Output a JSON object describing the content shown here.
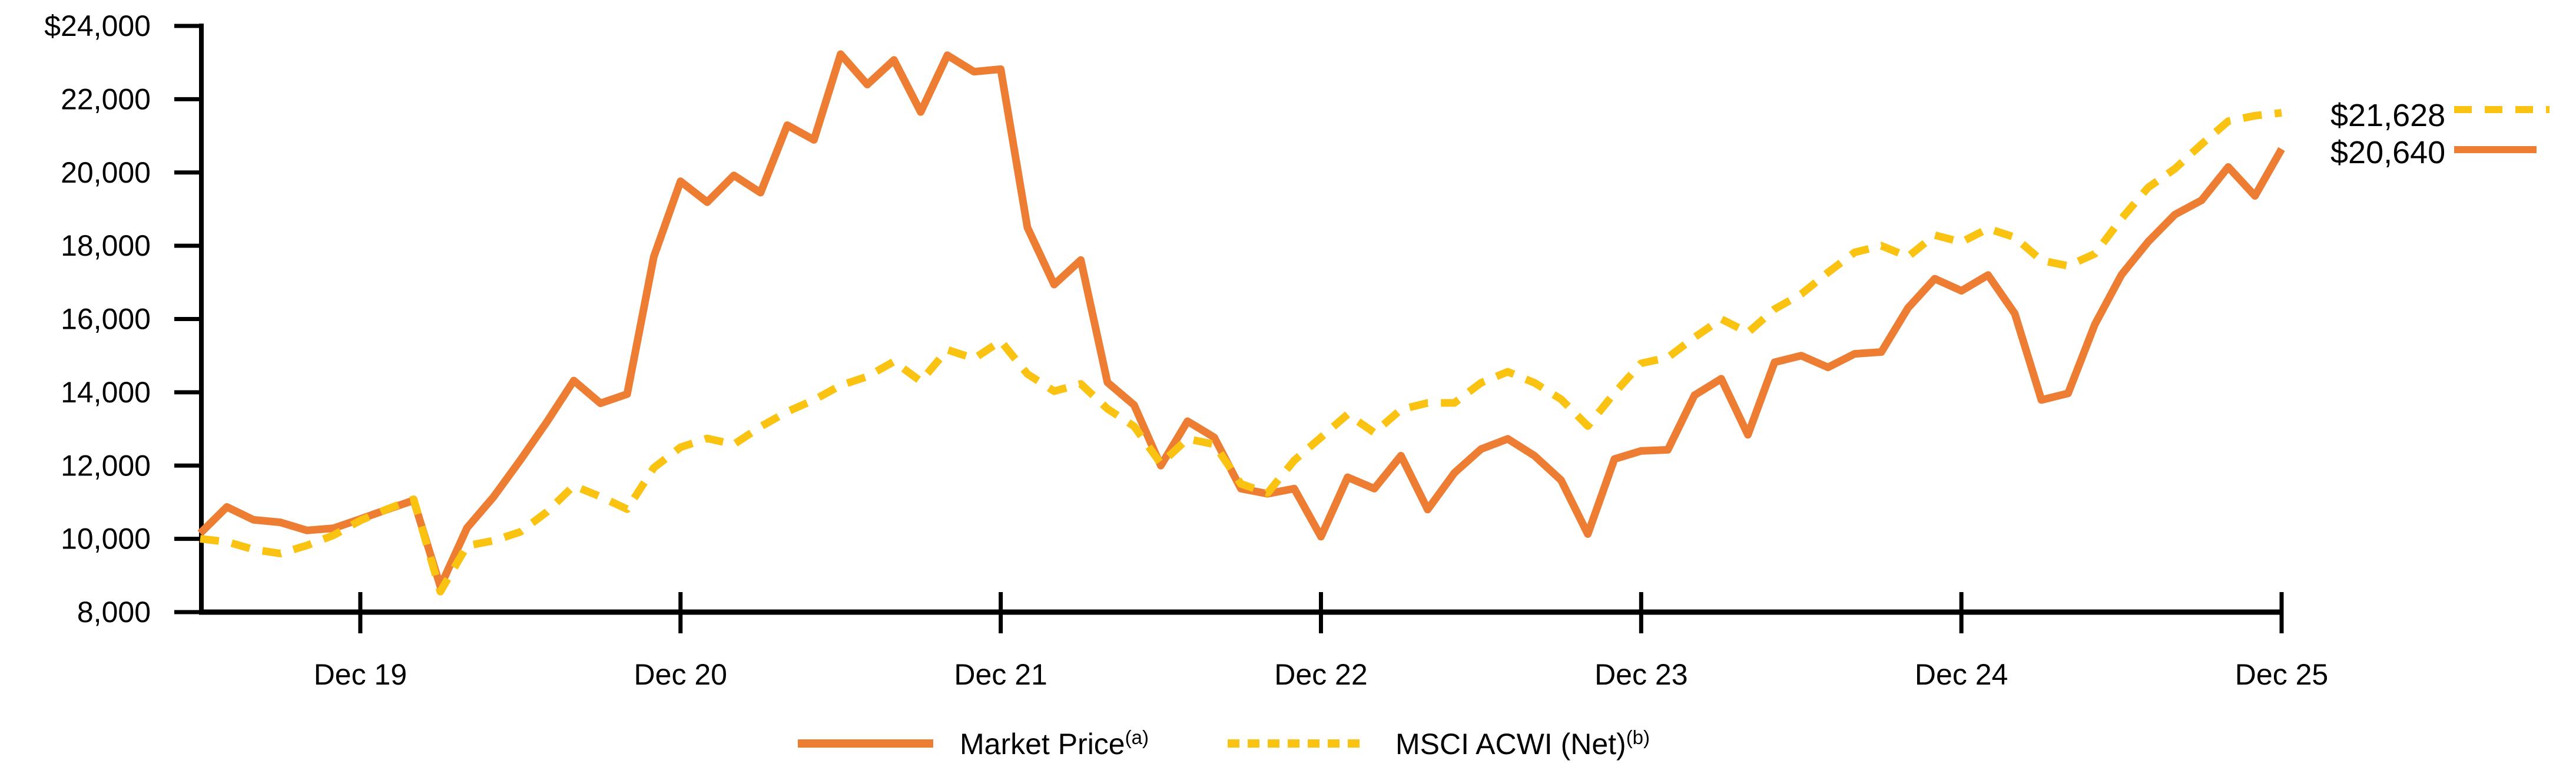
{
  "chart_data": {
    "type": "line",
    "title": "",
    "xlabel": "",
    "ylabel": "",
    "ylim": [
      8000,
      24000
    ],
    "grid": false,
    "legend_position": "bottom-center",
    "x_unit": "monthly",
    "x_first_point": "Jun 2019",
    "x_tick_labels": [
      "Dec 19",
      "Dec 20",
      "Dec 21",
      "Dec 22",
      "Dec 23",
      "Dec 24",
      "Dec 25"
    ],
    "x_tick_month_indices": [
      6,
      18,
      30,
      42,
      54,
      66,
      78
    ],
    "y_tick_values": [
      24000,
      22000,
      20000,
      18000,
      16000,
      14000,
      12000,
      10000,
      8000
    ],
    "y_tick_labels": [
      "$24,000",
      "22,000",
      "20,000",
      "18,000",
      "16,000",
      "14,000",
      "12,000",
      "10,000",
      "8,000"
    ],
    "series": [
      {
        "name": "Market Price",
        "superscript": "(a)",
        "style": "solid",
        "color": "#ED7D33",
        "end_label": "$20,640",
        "values": [
          10150,
          10870,
          10520,
          10450,
          10230,
          10290,
          10540,
          10800,
          11050,
          8700,
          10300,
          11150,
          12150,
          13200,
          14320,
          13700,
          13950,
          17700,
          19760,
          19190,
          19920,
          19450,
          21290,
          20890,
          23230,
          22400,
          23070,
          21650,
          23200,
          22750,
          22820,
          18500,
          16940,
          17610,
          14270,
          13650,
          12000,
          13210,
          12770,
          11370,
          11230,
          11370,
          10060,
          11680,
          11370,
          12270,
          10800,
          11800,
          12450,
          12730,
          12270,
          11600,
          10130,
          12180,
          12400,
          12430,
          13920,
          14370,
          12840,
          14820,
          15000,
          14680,
          15050,
          15100,
          16300,
          17100,
          16770,
          17200,
          16150,
          13790,
          13970,
          15850,
          17210,
          18110,
          18850,
          19240,
          20150,
          19360,
          20640
        ]
      },
      {
        "name": "MSCI ACWI (Net)",
        "superscript": "(b)",
        "style": "dashed",
        "color": "#FBC311",
        "end_label": "$21,628",
        "values": [
          10000,
          9920,
          9710,
          9600,
          9820,
          10100,
          10500,
          10810,
          11080,
          8560,
          9810,
          9950,
          10190,
          10740,
          11450,
          11150,
          10810,
          11940,
          12500,
          12740,
          12580,
          13060,
          13470,
          13790,
          14190,
          14430,
          14840,
          14300,
          15160,
          14920,
          15400,
          14500,
          14030,
          14230,
          13550,
          13070,
          12050,
          12730,
          12580,
          11500,
          11250,
          12140,
          12770,
          13400,
          12900,
          13530,
          13710,
          13710,
          14260,
          14560,
          14260,
          13810,
          13080,
          13980,
          14790,
          14950,
          15500,
          16000,
          15630,
          16270,
          16680,
          17270,
          17820,
          18000,
          17700,
          18290,
          18100,
          18470,
          18230,
          17600,
          17450,
          17780,
          18740,
          19590,
          20100,
          20770,
          21400,
          21550,
          21628
        ]
      }
    ]
  }
}
